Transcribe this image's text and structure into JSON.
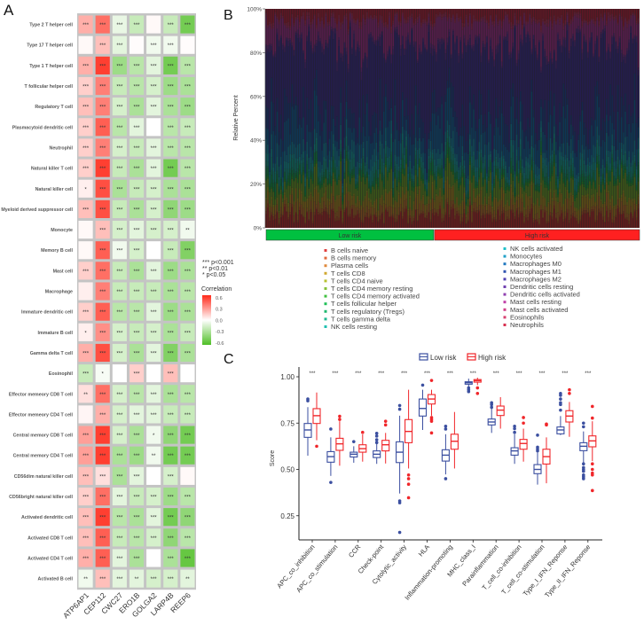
{
  "panels": {
    "a": "A",
    "b": "B",
    "c": "C"
  },
  "chart_data": [
    {
      "type": "heatmap",
      "panel": "A",
      "columns": [
        "ATP6AP1",
        "CEP112",
        "CWC27",
        "ERO1B",
        "GOLGA2",
        "LARP4B",
        "REEP6"
      ],
      "rows": [
        "Type 2 T helper cell",
        "Type 17 T helper cell",
        "Type 1 T helper cell",
        "T follicular helper cell",
        "Regulatory T cell",
        "Plasmacytoid dendritic cell",
        "Neutrophil",
        "Natural killer T cell",
        "Natural killer cell",
        "Myeloid derived suppressor cell",
        "Monocyte",
        "Memory B cell",
        "Mast cell",
        "Macrophage",
        "Immature dendritic cell",
        "Immature  B cell",
        "Gamma delta T cell",
        "Eosinophil",
        "Effector memeory CD8 T cell",
        "Effector memeory CD4 T cell",
        "Central memory CD8 T cell",
        "Central memory CD4 T cell",
        "CD56dim natural killer cell",
        "CD56bright natural killer cell",
        "Activated dendritic cell",
        "Activated CD8 T cell",
        "Activated CD4 T cell",
        "Activated B cell"
      ],
      "values": [
        [
          0.25,
          0.45,
          -0.08,
          -0.2,
          0.02,
          -0.2,
          -0.5
        ],
        [
          0.02,
          0.2,
          -0.1,
          0.01,
          -0.05,
          -0.05,
          0.01
        ],
        [
          0.25,
          0.6,
          -0.35,
          -0.25,
          -0.1,
          -0.5,
          -0.25
        ],
        [
          0.15,
          0.4,
          -0.2,
          -0.25,
          -0.15,
          -0.35,
          -0.3
        ],
        [
          0.2,
          0.4,
          -0.15,
          -0.3,
          -0.1,
          -0.3,
          -0.35
        ],
        [
          0.15,
          0.5,
          -0.25,
          -0.1,
          0.0,
          -0.25,
          -0.2
        ],
        [
          0.15,
          0.4,
          -0.15,
          -0.2,
          -0.1,
          -0.25,
          -0.25
        ],
        [
          0.15,
          0.6,
          -0.2,
          -0.3,
          -0.1,
          -0.5,
          -0.25
        ],
        [
          0.05,
          0.55,
          -0.3,
          -0.2,
          -0.15,
          -0.3,
          -0.3
        ],
        [
          0.2,
          0.55,
          -0.2,
          -0.3,
          -0.15,
          -0.4,
          -0.35
        ],
        [
          0.02,
          0.2,
          -0.15,
          -0.1,
          -0.15,
          -0.15,
          -0.05
        ],
        [
          0.02,
          0.5,
          -0.05,
          -0.15,
          0.0,
          -0.2,
          -0.45
        ],
        [
          0.15,
          0.45,
          -0.2,
          -0.3,
          -0.1,
          -0.35,
          -0.3
        ],
        [
          0.05,
          0.4,
          -0.2,
          -0.2,
          -0.2,
          -0.3,
          -0.25
        ],
        [
          0.15,
          0.5,
          -0.25,
          -0.25,
          -0.1,
          -0.35,
          -0.3
        ],
        [
          0.05,
          0.35,
          -0.15,
          -0.2,
          -0.15,
          -0.3,
          -0.2
        ],
        [
          0.25,
          0.55,
          -0.15,
          -0.3,
          -0.1,
          -0.45,
          -0.3
        ],
        [
          -0.2,
          -0.03,
          0.0,
          0.15,
          0.0,
          0.2,
          0.0
        ],
        [
          0.1,
          0.45,
          -0.15,
          -0.25,
          -0.1,
          -0.3,
          -0.25
        ],
        [
          0.03,
          0.25,
          -0.15,
          -0.1,
          -0.1,
          -0.2,
          -0.2
        ],
        [
          0.3,
          0.6,
          -0.15,
          -0.3,
          -0.05,
          -0.4,
          -0.5
        ],
        [
          0.3,
          0.7,
          -0.3,
          -0.35,
          -0.05,
          -0.5,
          -0.5
        ],
        [
          0.2,
          0.1,
          -0.3,
          -0.1,
          0.0,
          -0.15,
          0.02
        ],
        [
          0.15,
          0.45,
          -0.1,
          -0.2,
          -0.15,
          -0.35,
          -0.25
        ],
        [
          0.2,
          0.6,
          -0.25,
          -0.3,
          -0.1,
          -0.5,
          -0.4
        ],
        [
          0.2,
          0.5,
          -0.2,
          -0.25,
          -0.15,
          -0.4,
          -0.25
        ],
        [
          0.25,
          0.5,
          -0.1,
          -0.3,
          0.0,
          -0.3,
          -0.55
        ],
        [
          -0.05,
          0.2,
          -0.1,
          -0.1,
          -0.15,
          -0.15,
          -0.1
        ]
      ],
      "significance": [
        [
          "***",
          "***",
          "***",
          "***",
          "",
          "***",
          "***"
        ],
        [
          "",
          "***",
          "***",
          "",
          "***",
          "***",
          ""
        ],
        [
          "***",
          "***",
          "***",
          "***",
          "***",
          "***",
          "***"
        ],
        [
          "***",
          "***",
          "***",
          "***",
          "***",
          "***",
          "***"
        ],
        [
          "***",
          "***",
          "***",
          "***",
          "***",
          "***",
          "***"
        ],
        [
          "***",
          "***",
          "***",
          "***",
          "",
          "***",
          "***"
        ],
        [
          "***",
          "***",
          "***",
          "***",
          "***",
          "***",
          "***"
        ],
        [
          "***",
          "***",
          "***",
          "***",
          "***",
          "***",
          "***"
        ],
        [
          "*",
          "***",
          "***",
          "***",
          "***",
          "***",
          "***"
        ],
        [
          "***",
          "***",
          "***",
          "***",
          "***",
          "***",
          "***"
        ],
        [
          "",
          "***",
          "***",
          "***",
          "***",
          "***",
          "**"
        ],
        [
          "",
          "***",
          "***",
          "***",
          "",
          "***",
          "***"
        ],
        [
          "***",
          "***",
          "***",
          "***",
          "***",
          "***",
          "***"
        ],
        [
          "",
          "***",
          "***",
          "***",
          "***",
          "***",
          "***"
        ],
        [
          "***",
          "***",
          "***",
          "***",
          "***",
          "***",
          "***"
        ],
        [
          "*",
          "***",
          "***",
          "***",
          "***",
          "***",
          "***"
        ],
        [
          "***",
          "***",
          "***",
          "***",
          "***",
          "***",
          "***"
        ],
        [
          "***",
          "*",
          "",
          "***",
          "",
          "***",
          ""
        ],
        [
          "**",
          "***",
          "***",
          "***",
          "***",
          "***",
          "***"
        ],
        [
          "",
          "***",
          "***",
          "***",
          "***",
          "***",
          "***"
        ],
        [
          "***",
          "***",
          "***",
          "***",
          "*",
          "***",
          "***"
        ],
        [
          "***",
          "***",
          "***",
          "***",
          "**",
          "***",
          "***"
        ],
        [
          "***",
          "***",
          "***",
          "***",
          "",
          "***",
          ""
        ],
        [
          "***",
          "***",
          "***",
          "***",
          "***",
          "***",
          "***"
        ],
        [
          "***",
          "***",
          "***",
          "***",
          "***",
          "***",
          "***"
        ],
        [
          "***",
          "***",
          "***",
          "***",
          "***",
          "***",
          "***"
        ],
        [
          "***",
          "***",
          "***",
          "***",
          "",
          "***",
          "***"
        ],
        [
          "**",
          "***",
          "***",
          "**",
          "***",
          "***",
          "**"
        ]
      ],
      "sig_legend": [
        "*** p<0.001",
        "** p<0.01",
        "* p<0.05"
      ],
      "colorbar": {
        "title": "Correlation",
        "ticks": [
          "0.6",
          "0.3",
          "0.0",
          "-0.3",
          "-0.6"
        ],
        "range": [
          -0.6,
          0.6
        ],
        "low_color": "#4fbf26",
        "mid_color": "#ffffff",
        "high_color": "#ff2a1a"
      }
    },
    {
      "type": "bar",
      "subtype": "stacked-100%",
      "panel": "B",
      "ylabel": "Relative Percent",
      "yticks": [
        "0%",
        "20%",
        "40%",
        "60%",
        "80%",
        "100%"
      ],
      "groups": [
        {
          "label": "Low risk",
          "n_samples": 90,
          "color": "#00c040"
        },
        {
          "label": "High risk",
          "n_samples": 110,
          "color": "#ff2020"
        }
      ],
      "series": [
        {
          "name": "B cells naive",
          "approx_mean_fraction": 0.05,
          "color": "#e04040"
        },
        {
          "name": "B cells memory",
          "approx_mean_fraction": 0.01,
          "color": "#e0683c"
        },
        {
          "name": "Plasma cells",
          "approx_mean_fraction": 0.03,
          "color": "#e08a3c"
        },
        {
          "name": "T cells CD8",
          "approx_mean_fraction": 0.04,
          "color": "#d0a830"
        },
        {
          "name": "T cells CD4 naive",
          "approx_mean_fraction": 0.01,
          "color": "#b8c030"
        },
        {
          "name": "T cells CD4 memory resting",
          "approx_mean_fraction": 0.06,
          "color": "#84c038"
        },
        {
          "name": "T cells CD4 memory activated",
          "approx_mean_fraction": 0.01,
          "color": "#40c040"
        },
        {
          "name": "T cells follicular helper",
          "approx_mean_fraction": 0.01,
          "color": "#20c058"
        },
        {
          "name": "T cells regulatory (Tregs)",
          "approx_mean_fraction": 0.02,
          "color": "#20b870"
        },
        {
          "name": "T cells gamma delta",
          "approx_mean_fraction": 0.01,
          "color": "#20b890"
        },
        {
          "name": "NK cells resting",
          "approx_mean_fraction": 0.03,
          "color": "#20c0b0"
        },
        {
          "name": "NK cells activated",
          "approx_mean_fraction": 0.02,
          "color": "#20c0c8"
        },
        {
          "name": "Monocytes",
          "approx_mean_fraction": 0.04,
          "color": "#20a0c8"
        },
        {
          "name": "Macrophages M0",
          "approx_mean_fraction": 0.1,
          "color": "#2078c0"
        },
        {
          "name": "Macrophages M1",
          "approx_mean_fraction": 0.08,
          "color": "#3054b0"
        },
        {
          "name": "Macrophages M2",
          "approx_mean_fraction": 0.3,
          "color": "#5040b0"
        },
        {
          "name": "Dendritic cells resting",
          "approx_mean_fraction": 0.02,
          "color": "#7040b0"
        },
        {
          "name": "Dendritic cells activated",
          "approx_mean_fraction": 0.01,
          "color": "#9040b0"
        },
        {
          "name": "Mast cells resting",
          "approx_mean_fraction": 0.09,
          "color": "#c040a8"
        },
        {
          "name": "Mast cells activated",
          "approx_mean_fraction": 0.01,
          "color": "#d04088"
        },
        {
          "name": "Eosinophils",
          "approx_mean_fraction": 0.01,
          "color": "#d84070"
        },
        {
          "name": "Neutrophils",
          "approx_mean_fraction": 0.04,
          "color": "#d83050"
        }
      ]
    },
    {
      "type": "box",
      "panel": "C",
      "ylabel": "Score",
      "ylim": [
        0.12,
        1.04
      ],
      "yticks": [
        "0.25",
        "0.50",
        "0.75",
        "1.00"
      ],
      "ytick_values": [
        0.25,
        0.5,
        0.75,
        1.0
      ],
      "legend": [
        {
          "name": "Low risk",
          "color": "#3b4fa0"
        },
        {
          "name": "High risk",
          "color": "#f0262a"
        }
      ],
      "categories": [
        "APC_co_inhibition",
        "APC_co_stimulation",
        "CCR",
        "Check-point",
        "Cytolytic_activity",
        "HLA",
        "Inflammation-promoting",
        "MHC_class_I",
        "Parainflammation",
        "T_cell_co-inhibition",
        "T_cell_co-stimulation",
        "Type_I_IFN_Reponse",
        "Type_II_IFN_Reponse"
      ],
      "significance": [
        "***",
        "***",
        "***",
        "***",
        "***",
        "***",
        "***",
        "***",
        "***",
        "***",
        "***",
        "***",
        "***"
      ],
      "low": [
        {
          "wlo": 0.574,
          "q1": 0.673,
          "med": 0.713,
          "q3": 0.748,
          "whi": 0.836,
          "out": [
            0.88,
            0.87
          ]
        },
        {
          "wlo": 0.465,
          "q1": 0.539,
          "med": 0.569,
          "q3": 0.596,
          "whi": 0.673,
          "out": [
            0.718,
            0.43
          ]
        },
        {
          "wlo": 0.536,
          "q1": 0.567,
          "med": 0.582,
          "q3": 0.593,
          "whi": 0.625,
          "out": [
            0.65
          ]
        },
        {
          "wlo": 0.53,
          "q1": 0.564,
          "med": 0.582,
          "q3": 0.6,
          "whi": 0.64,
          "out": [
            0.695,
            0.68,
            0.66,
            0.645
          ]
        },
        {
          "wlo": 0.37,
          "q1": 0.537,
          "med": 0.593,
          "q3": 0.649,
          "whi": 0.79,
          "out": [
            0.845,
            0.825,
            0.33,
            0.32,
            0.16
          ]
        },
        {
          "wlo": 0.713,
          "q1": 0.788,
          "med": 0.829,
          "q3": 0.88,
          "whi": 0.93,
          "out": [
            0.955
          ]
        },
        {
          "wlo": 0.473,
          "q1": 0.545,
          "med": 0.577,
          "q3": 0.606,
          "whi": 0.69,
          "out": [
            0.733,
            0.718,
            0.45
          ]
        },
        {
          "wlo": 0.944,
          "q1": 0.96,
          "med": 0.968,
          "q3": 0.973,
          "whi": 0.99,
          "out": [
            0.94,
            0.93,
            0.92
          ]
        },
        {
          "wlo": 0.697,
          "q1": 0.74,
          "med": 0.756,
          "q3": 0.772,
          "whi": 0.832,
          "out": [
            0.86,
            0.85,
            0.835
          ]
        },
        {
          "wlo": 0.53,
          "q1": 0.577,
          "med": 0.6,
          "q3": 0.617,
          "whi": 0.69,
          "out": [
            0.733,
            0.72,
            0.7
          ]
        },
        {
          "wlo": 0.418,
          "q1": 0.477,
          "med": 0.5,
          "q3": 0.526,
          "whi": 0.593,
          "out": [
            0.685,
            0.62,
            0.61,
            0.6
          ]
        },
        {
          "wlo": 0.685,
          "q1": 0.692,
          "med": 0.713,
          "q3": 0.729,
          "whi": 0.788,
          "out": [
            0.91,
            0.9,
            0.88,
            0.86,
            0.85,
            0.82
          ]
        },
        {
          "wlo": 0.537,
          "q1": 0.601,
          "med": 0.625,
          "q3": 0.644,
          "whi": 0.705,
          "out": [
            0.75,
            0.73,
            0.53,
            0.51,
            0.5,
            0.49,
            0.47,
            0.46,
            0.45
          ]
        }
      ],
      "high": [
        {
          "wlo": 0.657,
          "q1": 0.748,
          "med": 0.79,
          "q3": 0.828,
          "whi": 0.915,
          "out": [
            0.625
          ]
        },
        {
          "wlo": 0.52,
          "q1": 0.603,
          "med": 0.638,
          "q3": 0.668,
          "whi": 0.76,
          "out": [
            0.787,
            0.77
          ]
        },
        {
          "wlo": 0.542,
          "q1": 0.593,
          "med": 0.612,
          "q3": 0.633,
          "whi": 0.689,
          "out": [
            0.7
          ]
        },
        {
          "wlo": 0.532,
          "q1": 0.6,
          "med": 0.633,
          "q3": 0.657,
          "whi": 0.697,
          "out": [
            0.76,
            0.74
          ]
        },
        {
          "wlo": 0.505,
          "q1": 0.644,
          "med": 0.705,
          "q3": 0.769,
          "whi": 0.93,
          "out": [
            0.47,
            0.45,
            0.42,
            0.347
          ]
        },
        {
          "wlo": 0.79,
          "q1": 0.853,
          "med": 0.88,
          "q3": 0.904,
          "whi": 0.93,
          "out": [
            0.98,
            0.78,
            0.77,
            0.76,
            0.697
          ]
        },
        {
          "wlo": 0.505,
          "q1": 0.609,
          "med": 0.652,
          "q3": 0.69,
          "whi": 0.81,
          "out": []
        },
        {
          "wlo": 0.955,
          "q1": 0.971,
          "med": 0.979,
          "q3": 0.985,
          "whi": 0.995,
          "out": [
            0.94,
            0.91
          ]
        },
        {
          "wlo": 0.72,
          "q1": 0.791,
          "med": 0.82,
          "q3": 0.842,
          "whi": 0.89,
          "out": []
        },
        {
          "wlo": 0.542,
          "q1": 0.609,
          "med": 0.64,
          "q3": 0.662,
          "whi": 0.72,
          "out": [
            0.78,
            0.75
          ]
        },
        {
          "wlo": 0.425,
          "q1": 0.529,
          "med": 0.569,
          "q3": 0.609,
          "whi": 0.673,
          "out": [
            0.745,
            0.74
          ]
        },
        {
          "wlo": 0.676,
          "q1": 0.756,
          "med": 0.788,
          "q3": 0.817,
          "whi": 0.864,
          "out": [
            0.93,
            0.91
          ]
        },
        {
          "wlo": 0.545,
          "q1": 0.622,
          "med": 0.654,
          "q3": 0.681,
          "whi": 0.76,
          "out": [
            0.84,
            0.777,
            0.53,
            0.5,
            0.48,
            0.47,
            0.386
          ]
        }
      ]
    }
  ]
}
